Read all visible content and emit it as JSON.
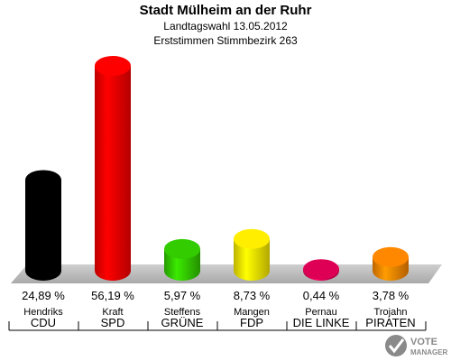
{
  "header": {
    "title": "Stadt Mülheim an der Ruhr",
    "subtitle": "Landtagswahl 13.05.2012",
    "subtitle2": "Erststimmen Stimmbezirk 263"
  },
  "chart_data": {
    "type": "bar",
    "categories": [
      "CDU",
      "SPD",
      "GRÜNE",
      "FDP",
      "DIE LINKE",
      "PIRATEN"
    ],
    "candidates": [
      "Hendriks",
      "Kraft",
      "Steffens",
      "Mangen",
      "Pernau",
      "Trojahn"
    ],
    "values": [
      24.89,
      56.19,
      5.97,
      8.73,
      0.44,
      3.78
    ],
    "value_labels": [
      "24,89 %",
      "56,19 %",
      "5,97 %",
      "8,73 %",
      "0,44 %",
      "3,78 %"
    ],
    "colors": [
      "#000000",
      "#ff0000",
      "#33cc00",
      "#ffee00",
      "#dd0055",
      "#ff8800"
    ],
    "ylim": [
      0,
      56.19
    ],
    "grid": false,
    "legend": "none"
  },
  "logo": {
    "line1": "VOTE",
    "line2": "MANAGER"
  }
}
